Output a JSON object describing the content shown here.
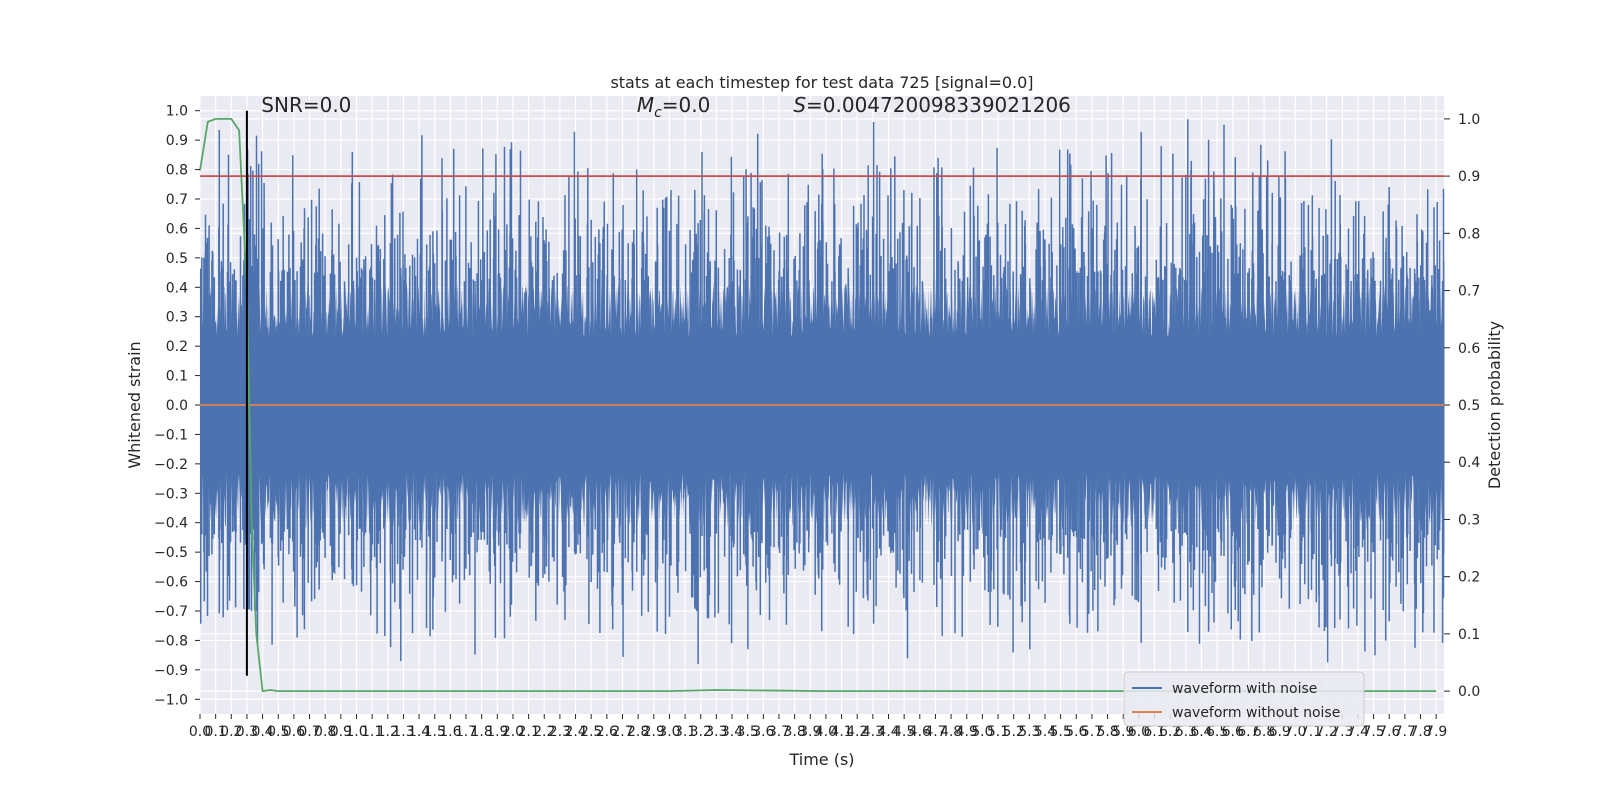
{
  "chart_data": {
    "type": "line",
    "title": "stats at each timestep for test data 725 [signal=0.0]",
    "xlabel": "Time (s)",
    "ylabel_left": "Whitened strain",
    "ylabel_right": "Detection probability",
    "xlim": [
      0.0,
      7.95
    ],
    "ylim_left": [
      -1.05,
      1.05
    ],
    "ylim_right": [
      -0.04,
      1.04
    ],
    "x_ticks": [
      "0.0",
      "0.1",
      "0.2",
      "0.3",
      "0.4",
      "0.5",
      "0.6",
      "0.7",
      "0.8",
      "0.9",
      "1.0",
      "1.1",
      "1.2",
      "1.3",
      "1.4",
      "1.5",
      "1.6",
      "1.7",
      "1.8",
      "1.9",
      "2.0",
      "2.1",
      "2.2",
      "2.3",
      "2.4",
      "2.5",
      "2.6",
      "2.7",
      "2.8",
      "2.9",
      "3.0",
      "3.1",
      "3.2",
      "3.3",
      "3.4",
      "3.5",
      "3.6",
      "3.7",
      "3.8",
      "3.9",
      "4.0",
      "4.1",
      "4.2",
      "4.3",
      "4.4",
      "4.5",
      "4.6",
      "4.7",
      "4.8",
      "4.9",
      "5.0",
      "5.1",
      "5.2",
      "5.3",
      "5.4",
      "5.5",
      "5.6",
      "5.7",
      "5.8",
      "5.9",
      "6.0",
      "6.1",
      "6.2",
      "6.3",
      "6.4",
      "6.5",
      "6.6",
      "6.7",
      "6.8",
      "6.9",
      "7.0",
      "7.1",
      "7.2",
      "7.3",
      "7.4",
      "7.5",
      "7.6",
      "7.7",
      "7.8",
      "7.9"
    ],
    "y_ticks_left": [
      "−1.0",
      "−0.9",
      "−0.8",
      "−0.7",
      "−0.6",
      "−0.5",
      "−0.4",
      "−0.3",
      "−0.2",
      "−0.1",
      "0.0",
      "0.1",
      "0.2",
      "0.3",
      "0.4",
      "0.5",
      "0.6",
      "0.7",
      "0.8",
      "0.9",
      "1.0"
    ],
    "y_ticks_right": [
      "0.0",
      "0.1",
      "0.2",
      "0.3",
      "0.4",
      "0.5",
      "0.6",
      "0.7",
      "0.8",
      "0.9",
      "1.0"
    ],
    "annotations": [
      {
        "text": "SNR=0.0",
        "x": 0.2,
        "y": 1.02
      },
      {
        "text": "Mc=0.0",
        "x": 2.6,
        "y": 1.02
      },
      {
        "text": "S=0.004720098339021206",
        "x": 3.6,
        "y": 1.02
      }
    ],
    "legend": {
      "placement": "lower-right",
      "entries": [
        {
          "name": "waveform with noise",
          "color": "#4c72b0"
        },
        {
          "name": "waveform without noise",
          "color": "#dd8452"
        }
      ]
    },
    "series": [
      {
        "name": "waveform with noise",
        "axis": "left",
        "color": "#4c72b0",
        "style": "noise",
        "envelope_min": -0.9,
        "envelope_max": 1.0,
        "typical_abs": 0.42
      },
      {
        "name": "waveform without noise",
        "axis": "left",
        "color": "#dd8452",
        "x": [
          0.0,
          7.95
        ],
        "y": [
          0.0,
          0.0
        ]
      },
      {
        "name": "detection probability",
        "axis": "right",
        "color": "#55a868",
        "x": [
          0.0,
          0.05,
          0.1,
          0.15,
          0.2,
          0.25,
          0.3,
          0.33,
          0.36,
          0.4,
          0.45,
          0.5,
          1.0,
          2.0,
          3.0,
          3.3,
          4.0,
          5.0,
          6.0,
          7.0,
          7.9
        ],
        "y": [
          0.91,
          0.995,
          1.0,
          1.0,
          1.0,
          0.98,
          0.7,
          0.3,
          0.1,
          0.0,
          0.002,
          0.0,
          0.0,
          0.0,
          0.0,
          0.002,
          0.0,
          0.0,
          0.0,
          0.0,
          0.0
        ]
      },
      {
        "name": "threshold",
        "axis": "right",
        "color": "#c44e52",
        "x": [
          0.0,
          7.95
        ],
        "y": [
          0.9,
          0.9
        ]
      },
      {
        "name": "marker",
        "axis": "left",
        "color": "#000000",
        "x": [
          0.3,
          0.3
        ],
        "y": [
          -0.92,
          1.0
        ]
      }
    ],
    "grid": true
  }
}
